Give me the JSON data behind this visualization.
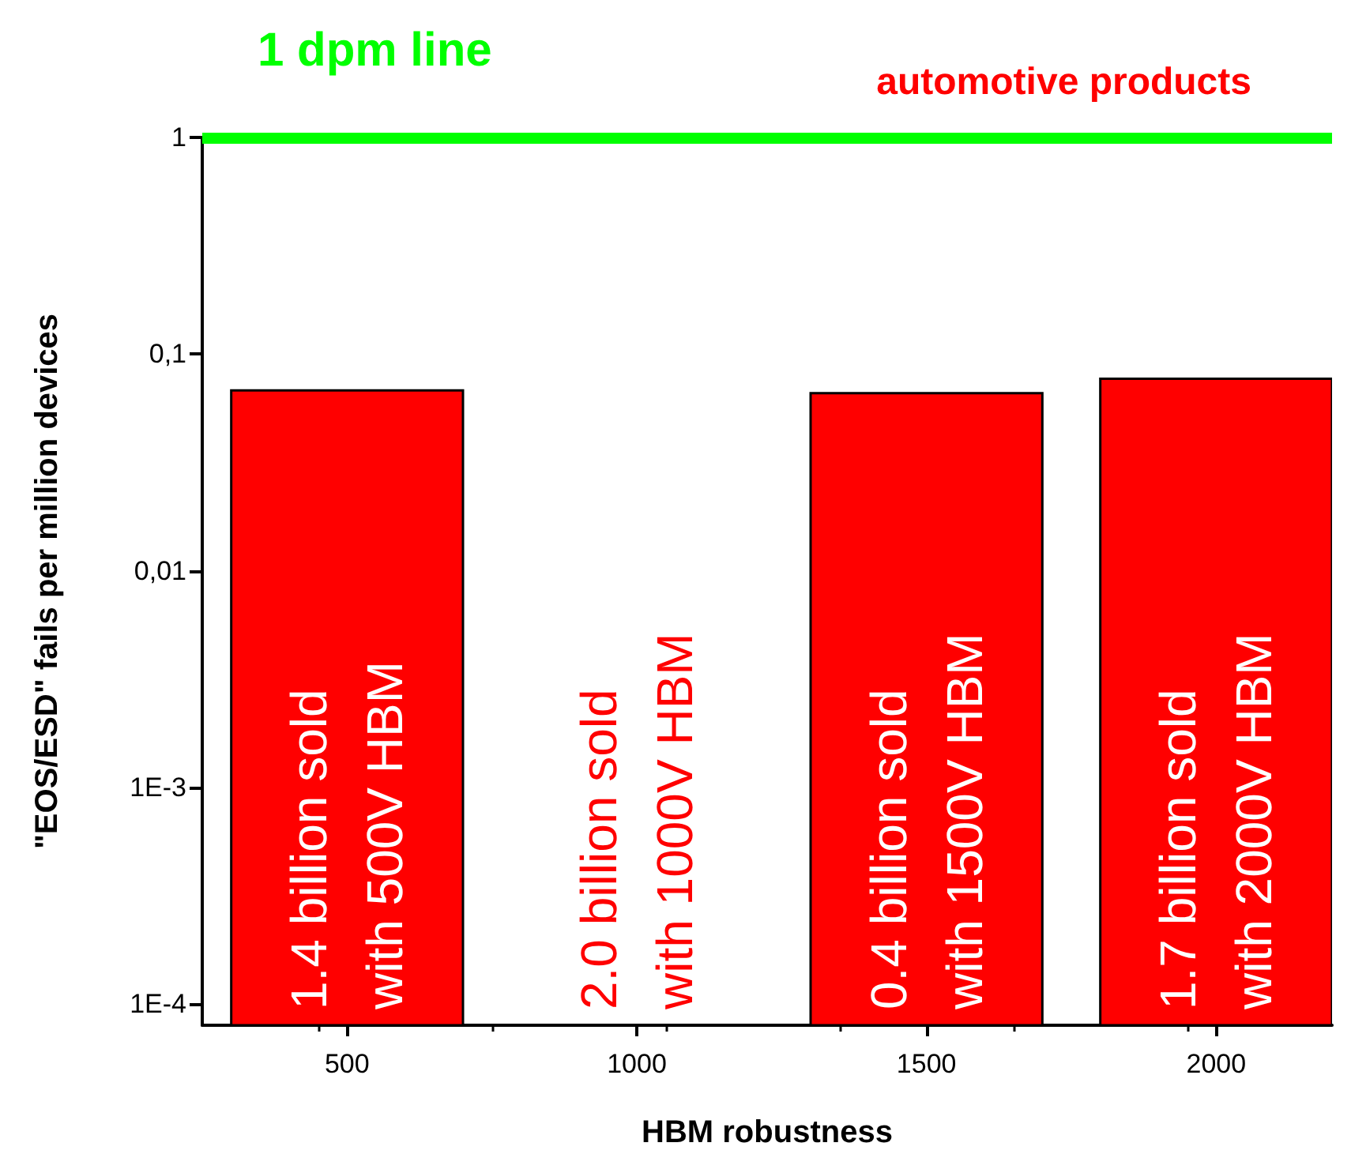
{
  "chart_data": {
    "type": "bar",
    "xlabel": "HBM robustness",
    "ylabel": "\"EOS/ESD\" fails per million devices",
    "x": [
      500,
      1000,
      1500,
      2000
    ],
    "values": [
      0.068,
      null,
      0.066,
      0.077
    ],
    "color": "#ff0000",
    "log": true,
    "xlim": [
      250,
      2200
    ],
    "xticks": [
      500,
      1000,
      1500,
      2000
    ],
    "ylim": [
      8e-05,
      1
    ],
    "yticks": [
      {
        "value": 0.0001,
        "label": "1E-4"
      },
      {
        "value": 0.001,
        "label": "1E-3"
      },
      {
        "value": 0.01,
        "label": "0,01"
      },
      {
        "value": 0.1,
        "label": "0,1"
      },
      1
    ],
    "grid": false,
    "ref_lines": [
      {
        "axis": "y",
        "value": 1,
        "label": "1 dpm line",
        "color": "#00ff00"
      }
    ],
    "annotations": [
      "1.4 billion sold\nwith 500V HBM",
      "2.0 billion sold\nwith 1000V HBM",
      "0.4 billion sold\nwith 1500V HBM",
      "1.7 billion sold\nwith 2000V HBM",
      "automotive products"
    ]
  }
}
